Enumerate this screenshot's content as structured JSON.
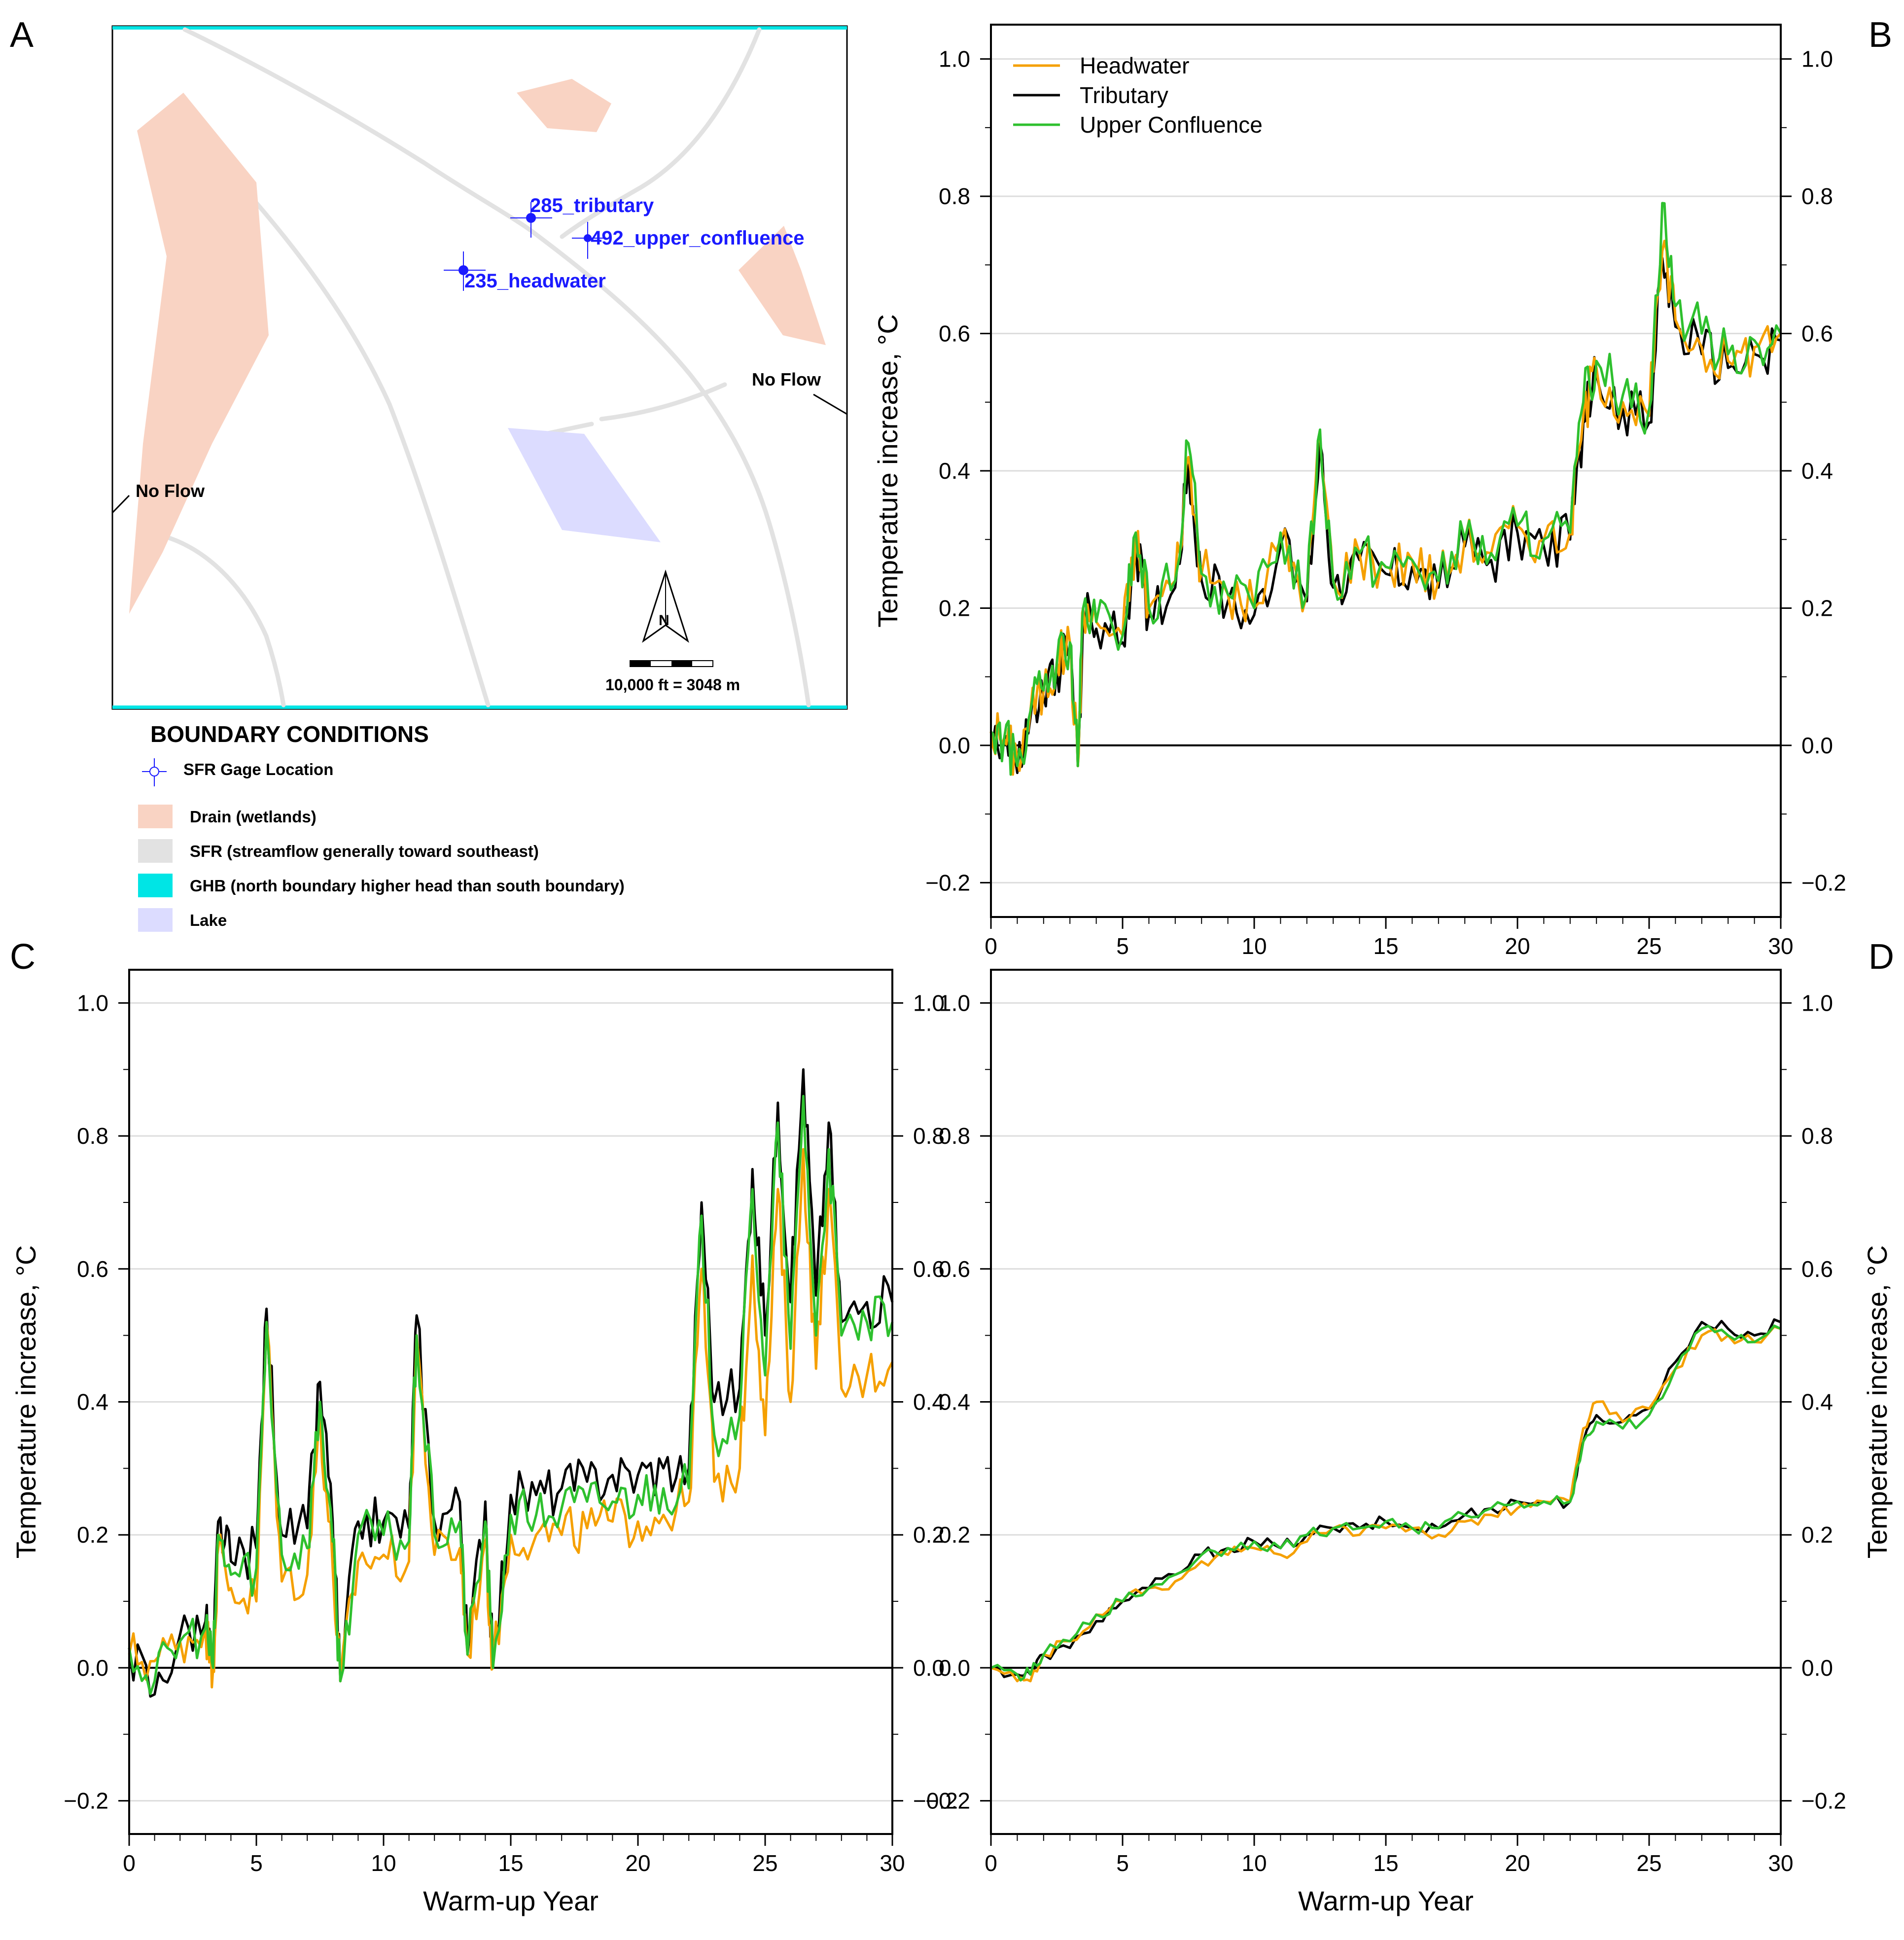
{
  "panel_labels": [
    "A",
    "B",
    "C",
    "D"
  ],
  "colors": {
    "headwater": "#f5a000",
    "tributary": "#000000",
    "upper_confluence": "#2ec02e",
    "drain": "#f9d3c3",
    "sfr": "#e2e2e2",
    "ghb": "#00e5e5",
    "lake": "#dcdcff",
    "gage": "#1a1aff"
  },
  "map": {
    "gage_labels": [
      "285_tributary",
      "492_upper_confluence",
      "235_headwater"
    ],
    "no_flow_labels": [
      "No Flow",
      "No Flow"
    ],
    "north_label": "N",
    "scale_label": "10,000 ft = 3048 m",
    "legend_title": "BOUNDARY CONDITIONS",
    "legend_items": [
      {
        "key": "gage",
        "label": "SFR Gage Location"
      },
      {
        "key": "drain",
        "label": "Drain (wetlands)"
      },
      {
        "key": "sfr",
        "label": "SFR (streamflow generally toward southeast)"
      },
      {
        "key": "ghb",
        "label": "GHB (north boundary higher head than south boundary)"
      },
      {
        "key": "lake",
        "label": "Lake"
      }
    ]
  },
  "chart_data": [
    {
      "panel": "B",
      "type": "line",
      "xlabel": "",
      "ylabel": "Temperature increase, °C",
      "ylabel_side": "left",
      "xlim": [
        0,
        30
      ],
      "ylim": [
        -0.25,
        1.05
      ],
      "xticks": [
        0,
        5,
        10,
        15,
        20,
        25,
        30
      ],
      "yticks": [
        -0.2,
        0.0,
        0.2,
        0.4,
        0.6,
        0.8,
        1.0
      ],
      "grid": "horizontal",
      "legend": "top-left",
      "series": [
        {
          "name": "Headwater",
          "key": "headwater",
          "x": [
            0,
            0.5,
            1,
            1.5,
            2,
            2.5,
            3,
            3.3,
            3.5,
            4,
            5,
            5.5,
            6,
            7,
            7.5,
            8,
            9,
            10,
            11,
            12,
            12.5,
            13,
            14,
            15,
            16,
            17,
            18,
            19,
            20,
            21,
            22,
            22.5,
            23,
            24,
            25,
            25.5,
            26,
            27,
            28,
            29,
            30
          ],
          "y": [
            0.02,
            0.01,
            -0.02,
            0.05,
            0.08,
            0.12,
            0.15,
            -0.03,
            0.2,
            0.18,
            0.16,
            0.3,
            0.2,
            0.24,
            0.42,
            0.25,
            0.22,
            0.2,
            0.3,
            0.22,
            0.45,
            0.24,
            0.28,
            0.26,
            0.27,
            0.24,
            0.3,
            0.28,
            0.32,
            0.3,
            0.31,
            0.48,
            0.55,
            0.5,
            0.48,
            0.72,
            0.62,
            0.58,
            0.56,
            0.58,
            0.6
          ]
        },
        {
          "name": "Tributary",
          "key": "tributary",
          "x": [
            0,
            0.5,
            1,
            1.5,
            2,
            2.5,
            3,
            3.3,
            3.5,
            4,
            5,
            5.5,
            6,
            7,
            7.5,
            8,
            9,
            10,
            11,
            12,
            12.5,
            13,
            14,
            15,
            16,
            17,
            18,
            19,
            20,
            21,
            22,
            22.5,
            23,
            24,
            25,
            25.5,
            26,
            27,
            28,
            29,
            30
          ],
          "y": [
            0.02,
            0.01,
            -0.04,
            0.04,
            0.07,
            0.11,
            0.14,
            -0.03,
            0.19,
            0.17,
            0.15,
            0.29,
            0.19,
            0.23,
            0.41,
            0.24,
            0.21,
            0.19,
            0.29,
            0.21,
            0.44,
            0.23,
            0.27,
            0.25,
            0.26,
            0.23,
            0.29,
            0.27,
            0.31,
            0.29,
            0.3,
            0.47,
            0.54,
            0.49,
            0.47,
            0.71,
            0.61,
            0.57,
            0.55,
            0.57,
            0.59
          ]
        },
        {
          "name": "Upper Confluence",
          "key": "upper_confluence",
          "x": [
            0,
            0.5,
            1,
            1.5,
            2,
            2.5,
            3,
            3.3,
            3.5,
            4,
            5,
            5.5,
            6,
            7,
            7.5,
            8,
            9,
            10,
            11,
            12,
            12.5,
            13,
            14,
            15,
            16,
            17,
            18,
            19,
            20,
            21,
            22,
            22.5,
            23,
            24,
            25,
            25.5,
            26,
            27,
            28,
            29,
            30
          ],
          "y": [
            0.02,
            0.01,
            -0.03,
            0.05,
            0.08,
            0.12,
            0.15,
            -0.03,
            0.2,
            0.18,
            0.16,
            0.31,
            0.2,
            0.24,
            0.44,
            0.25,
            0.22,
            0.2,
            0.31,
            0.22,
            0.46,
            0.24,
            0.28,
            0.26,
            0.27,
            0.24,
            0.3,
            0.28,
            0.32,
            0.3,
            0.31,
            0.5,
            0.56,
            0.51,
            0.49,
            0.79,
            0.64,
            0.6,
            0.57,
            0.59,
            0.6
          ]
        }
      ]
    },
    {
      "panel": "C",
      "type": "line",
      "xlabel": "Warm-up Year",
      "ylabel": "Temperature increase, °C",
      "ylabel_side": "left",
      "xlim": [
        0,
        30
      ],
      "ylim": [
        -0.25,
        1.05
      ],
      "xticks": [
        0,
        5,
        10,
        15,
        20,
        25,
        30
      ],
      "yticks": [
        -0.2,
        0.0,
        0.2,
        0.4,
        0.6,
        0.8,
        1.0
      ],
      "grid": "horizontal",
      "legend": "none",
      "series": [
        {
          "name": "Headwater",
          "key": "headwater",
          "x": [
            0,
            1,
            2,
            3,
            3.3,
            3.5,
            4,
            5,
            5.4,
            6,
            7,
            7.5,
            8,
            8.3,
            9,
            10,
            11,
            11.3,
            12,
            13,
            13.3,
            14,
            14.3,
            15,
            16,
            17,
            18,
            19,
            20,
            21,
            22,
            22.5,
            23,
            24,
            24.5,
            25,
            25.5,
            26,
            26.5,
            27,
            27.5,
            28,
            29,
            30
          ],
          "y": [
            0.02,
            0.01,
            0.04,
            0.06,
            0.0,
            0.18,
            0.12,
            0.1,
            0.52,
            0.13,
            0.14,
            0.38,
            0.15,
            -0.02,
            0.16,
            0.17,
            0.16,
            0.5,
            0.17,
            0.18,
            0.02,
            0.19,
            0.0,
            0.2,
            0.2,
            0.2,
            0.21,
            0.22,
            0.22,
            0.23,
            0.25,
            0.6,
            0.28,
            0.3,
            0.62,
            0.35,
            0.72,
            0.4,
            0.78,
            0.45,
            0.72,
            0.42,
            0.44,
            0.46
          ]
        },
        {
          "name": "Tributary",
          "key": "tributary",
          "x": [
            0,
            1,
            2,
            3,
            3.3,
            3.5,
            4,
            5,
            5.4,
            6,
            7,
            7.5,
            8,
            8.3,
            9,
            10,
            11,
            11.3,
            12,
            13,
            13.3,
            14,
            14.3,
            15,
            16,
            17,
            18,
            19,
            20,
            21,
            22,
            22.5,
            23,
            24,
            24.5,
            25,
            25.5,
            26,
            26.5,
            27,
            27.5,
            28,
            29,
            30
          ],
          "y": [
            0.03,
            -0.04,
            0.05,
            0.07,
            0.0,
            0.22,
            0.16,
            0.18,
            0.54,
            0.2,
            0.21,
            0.43,
            0.22,
            -0.02,
            0.22,
            0.22,
            0.21,
            0.53,
            0.22,
            0.25,
            0.02,
            0.25,
            0.0,
            0.26,
            0.26,
            0.27,
            0.28,
            0.29,
            0.29,
            0.3,
            0.3,
            0.7,
            0.4,
            0.42,
            0.75,
            0.5,
            0.85,
            0.55,
            0.9,
            0.56,
            0.82,
            0.52,
            0.55,
            0.55
          ]
        },
        {
          "name": "Upper Confluence",
          "key": "upper_confluence",
          "x": [
            0,
            1,
            2,
            3,
            3.3,
            3.5,
            4,
            5,
            5.4,
            6,
            7,
            7.5,
            8,
            8.3,
            9,
            10,
            11,
            11.3,
            12,
            13,
            13.3,
            14,
            14.3,
            15,
            16,
            17,
            18,
            19,
            20,
            21,
            22,
            22.5,
            23,
            24,
            24.5,
            25,
            25.5,
            26,
            26.5,
            27,
            27.5,
            28,
            29,
            30
          ],
          "y": [
            0.03,
            -0.02,
            0.04,
            0.06,
            0.0,
            0.2,
            0.14,
            0.15,
            0.52,
            0.17,
            0.18,
            0.4,
            0.19,
            -0.02,
            0.2,
            0.2,
            0.19,
            0.5,
            0.2,
            0.22,
            0.02,
            0.22,
            0.0,
            0.23,
            0.23,
            0.24,
            0.25,
            0.25,
            0.26,
            0.27,
            0.27,
            0.68,
            0.35,
            0.38,
            0.72,
            0.44,
            0.82,
            0.48,
            0.86,
            0.5,
            0.78,
            0.5,
            0.52,
            0.52
          ]
        }
      ]
    },
    {
      "panel": "D",
      "type": "line",
      "xlabel": "Warm-up Year",
      "ylabel": "Temperature increase, °C",
      "ylabel_side": "right",
      "xlim": [
        0,
        30
      ],
      "ylim": [
        -0.25,
        1.05
      ],
      "xticks": [
        0,
        5,
        10,
        15,
        20,
        25,
        30
      ],
      "yticks": [
        -0.2,
        0.0,
        0.2,
        0.4,
        0.6,
        0.8,
        1.0
      ],
      "grid": "horizontal",
      "legend": "none",
      "series": [
        {
          "name": "Headwater",
          "key": "headwater",
          "x": [
            0,
            1,
            1.5,
            2,
            3,
            4,
            5,
            6,
            7,
            8,
            9,
            10,
            11,
            12,
            13,
            14,
            15,
            16,
            17,
            18,
            19,
            20,
            21,
            22,
            22.5,
            23,
            24,
            25,
            26,
            27,
            28,
            29,
            30
          ],
          "y": [
            0.0,
            -0.02,
            -0.02,
            0.02,
            0.04,
            0.08,
            0.1,
            0.12,
            0.13,
            0.16,
            0.17,
            0.18,
            0.17,
            0.19,
            0.21,
            0.2,
            0.21,
            0.21,
            0.2,
            0.22,
            0.23,
            0.24,
            0.25,
            0.25,
            0.36,
            0.4,
            0.37,
            0.39,
            0.45,
            0.5,
            0.5,
            0.49,
            0.51
          ]
        },
        {
          "name": "Tributary",
          "key": "tributary",
          "x": [
            0,
            1,
            1.5,
            2,
            3,
            4,
            5,
            6,
            7,
            8,
            9,
            10,
            11,
            12,
            13,
            14,
            15,
            16,
            17,
            18,
            19,
            20,
            21,
            22,
            22.5,
            23,
            24,
            25,
            26,
            27,
            28,
            29,
            30
          ],
          "y": [
            0.0,
            -0.01,
            -0.01,
            0.02,
            0.03,
            0.07,
            0.1,
            0.12,
            0.14,
            0.17,
            0.18,
            0.19,
            0.18,
            0.2,
            0.21,
            0.21,
            0.22,
            0.21,
            0.21,
            0.23,
            0.24,
            0.25,
            0.25,
            0.25,
            0.34,
            0.38,
            0.37,
            0.39,
            0.46,
            0.52,
            0.51,
            0.5,
            0.52
          ]
        },
        {
          "name": "Upper Confluence",
          "key": "upper_confluence",
          "x": [
            0,
            1,
            1.5,
            2,
            3,
            4,
            5,
            6,
            7,
            8,
            9,
            10,
            11,
            12,
            13,
            14,
            15,
            16,
            17,
            18,
            19,
            20,
            21,
            22,
            22.5,
            23,
            24,
            25,
            26,
            27,
            28,
            29,
            30
          ],
          "y": [
            0.0,
            -0.01,
            -0.01,
            0.02,
            0.04,
            0.08,
            0.1,
            0.12,
            0.14,
            0.17,
            0.18,
            0.19,
            0.18,
            0.2,
            0.21,
            0.21,
            0.22,
            0.21,
            0.21,
            0.23,
            0.24,
            0.25,
            0.25,
            0.25,
            0.34,
            0.37,
            0.36,
            0.38,
            0.45,
            0.51,
            0.5,
            0.49,
            0.51
          ]
        }
      ]
    }
  ]
}
